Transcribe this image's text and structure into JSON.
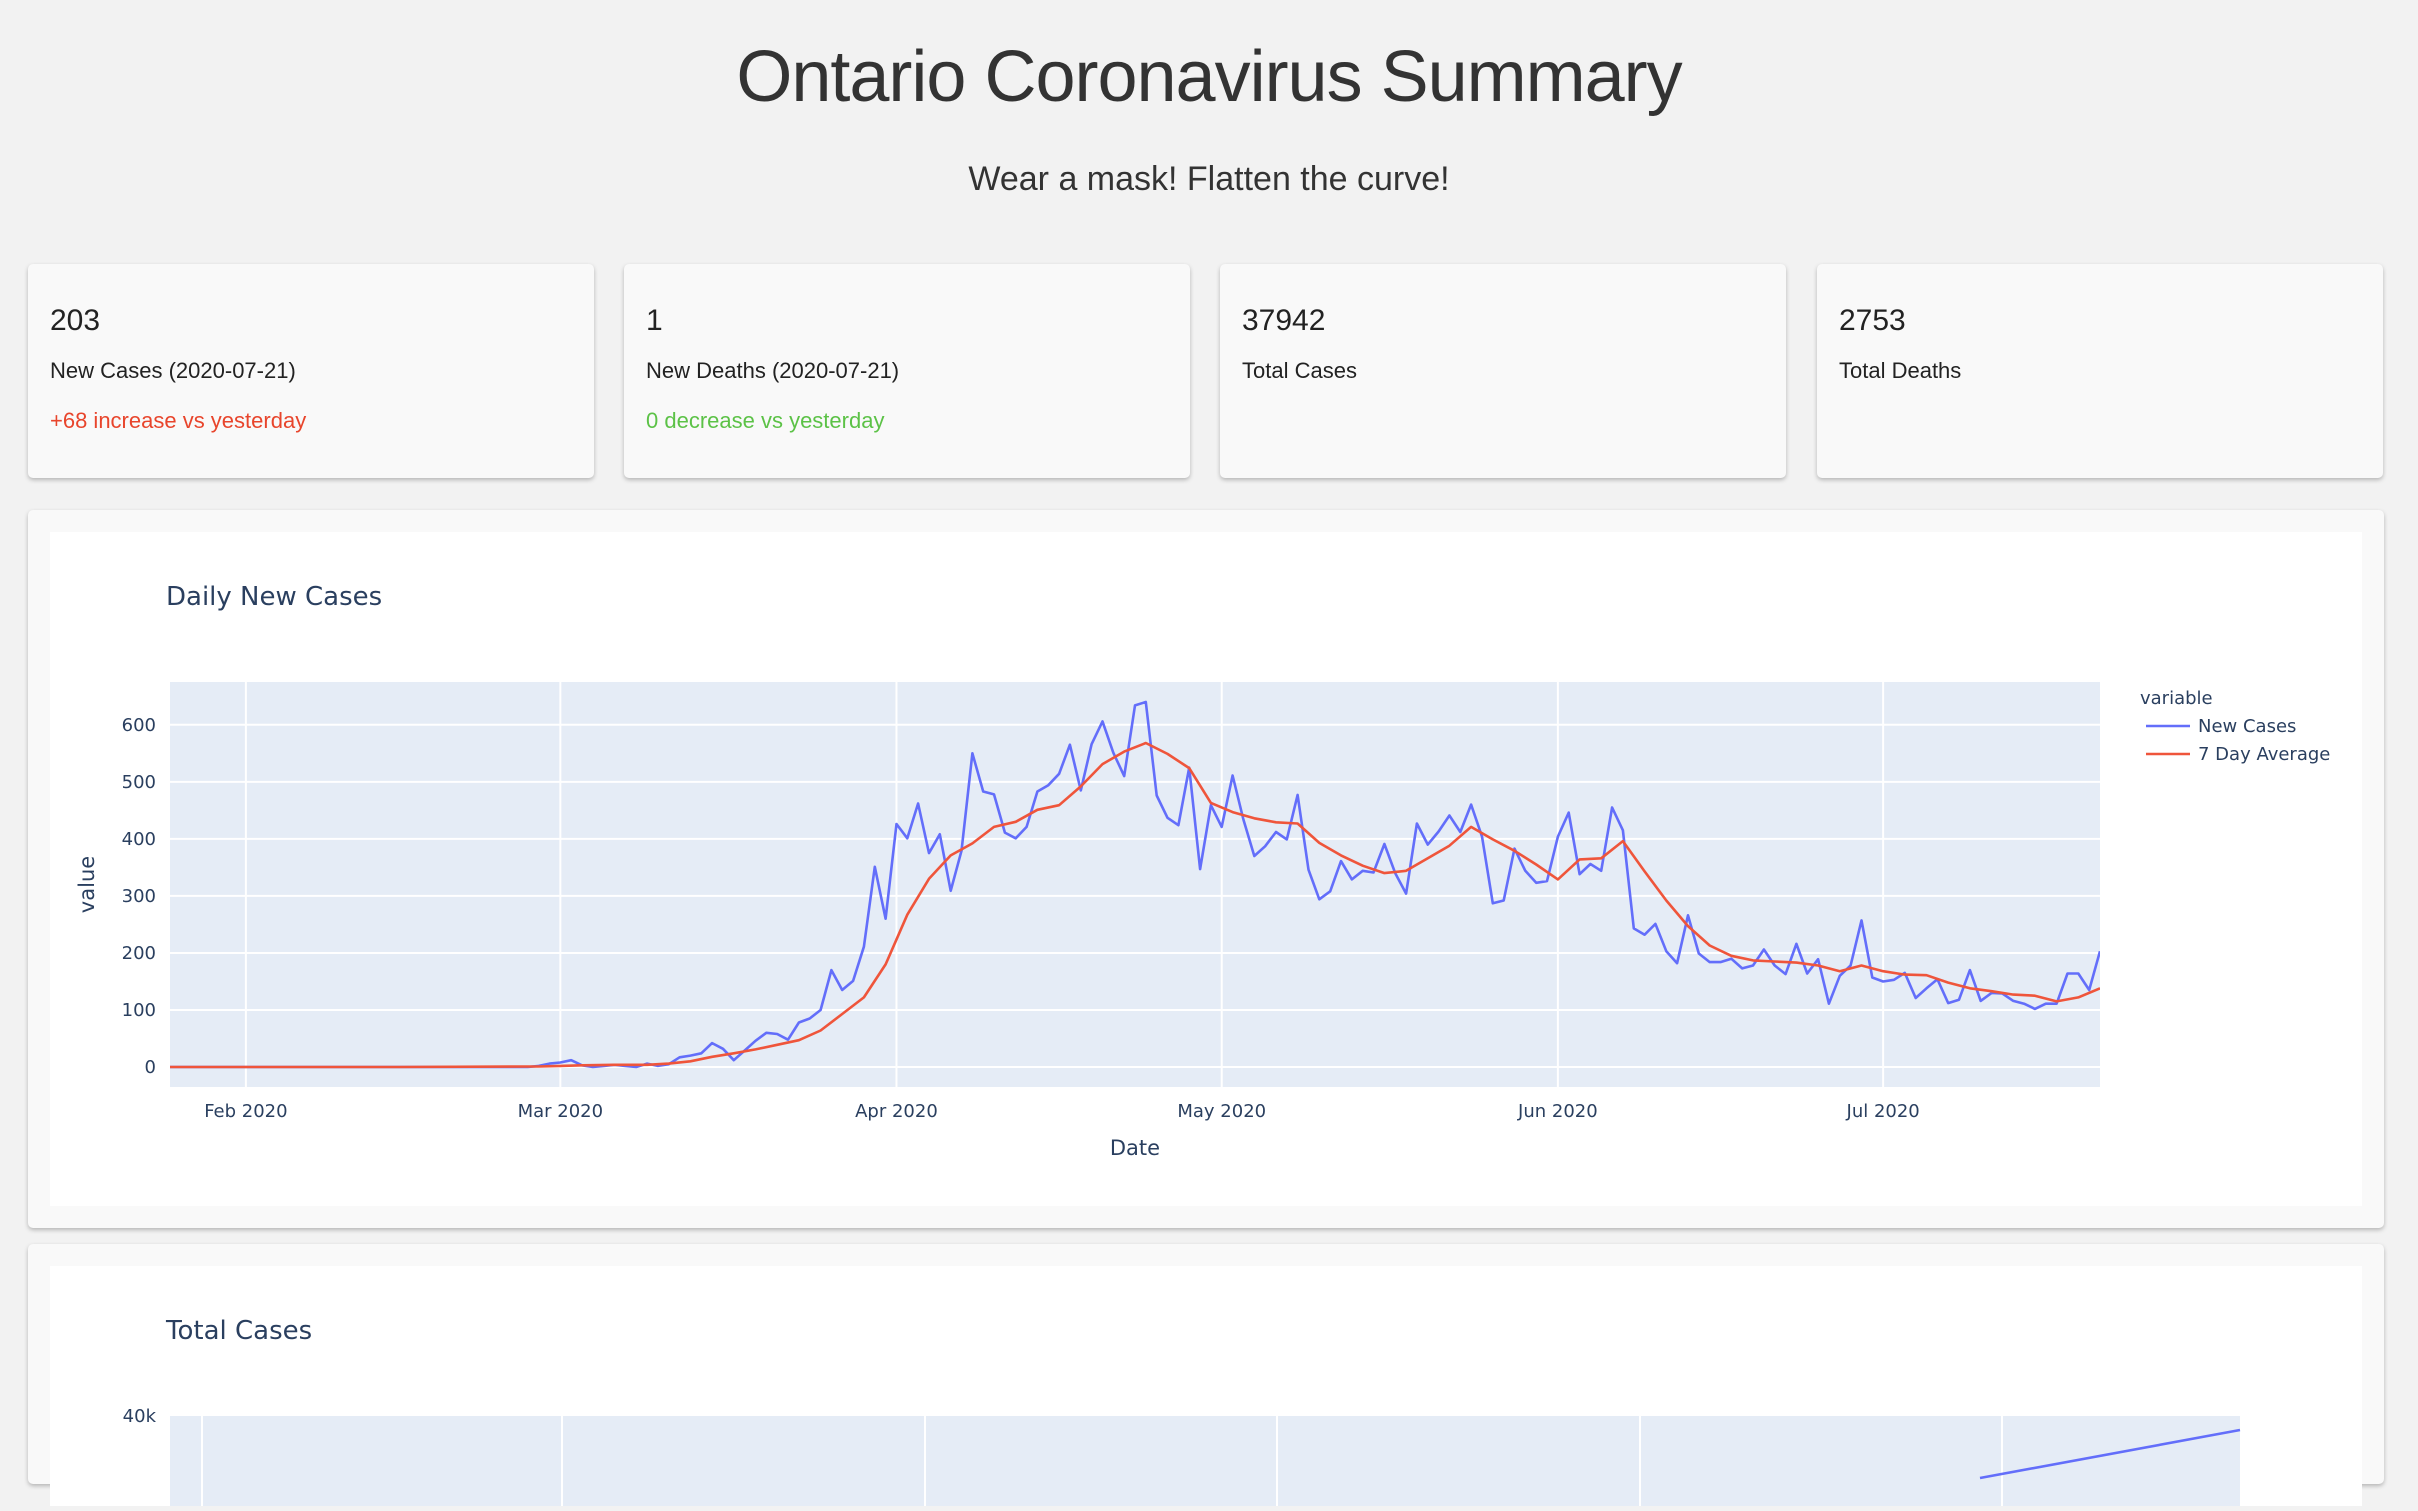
{
  "header": {
    "title": "Ontario Coronavirus Summary",
    "subtitle": "Wear a mask! Flatten the curve!"
  },
  "cards": [
    {
      "value": "203",
      "label": "New Cases (2020-07-21)",
      "change": "+68 increase vs yesterday",
      "change_color": "#e8452c"
    },
    {
      "value": "1",
      "label": "New Deaths (2020-07-21)",
      "change": "0 decrease vs yesterday",
      "change_color": "#5cc247"
    },
    {
      "value": "37942",
      "label": "Total Cases",
      "change": ""
    },
    {
      "value": "2753",
      "label": "Total Deaths",
      "change": ""
    }
  ],
  "chart_data": [
    {
      "type": "line",
      "title": "Daily New Cases",
      "xlabel": "Date",
      "ylabel": "value",
      "xlim": [
        "2020-01-25",
        "2020-07-21"
      ],
      "ylim": [
        -35,
        675
      ],
      "yticks": [
        0,
        100,
        200,
        300,
        400,
        500,
        600
      ],
      "xticks": [
        "2020-02-01",
        "2020-03-01",
        "2020-04-01",
        "2020-05-01",
        "2020-06-01",
        "2020-07-01"
      ],
      "xticklabels": [
        "Feb 2020",
        "Mar 2020",
        "Apr 2020",
        "May 2020",
        "Jun 2020",
        "Jul 2020"
      ],
      "legend_title": "variable",
      "legend_position": "top-right",
      "grid": true,
      "series": [
        {
          "name": "New Cases",
          "color": "#636efa",
          "points": [
            [
              "2020-01-25",
              0
            ],
            [
              "2020-02-01",
              0
            ],
            [
              "2020-02-15",
              0
            ],
            [
              "2020-02-27",
              0
            ],
            [
              "2020-02-28",
              2
            ],
            [
              "2020-02-29",
              6
            ],
            [
              "2020-03-01",
              8
            ],
            [
              "2020-03-02",
              12
            ],
            [
              "2020-03-03",
              3
            ],
            [
              "2020-03-04",
              0
            ],
            [
              "2020-03-05",
              2
            ],
            [
              "2020-03-06",
              4
            ],
            [
              "2020-03-07",
              2
            ],
            [
              "2020-03-08",
              0
            ],
            [
              "2020-03-09",
              6
            ],
            [
              "2020-03-10",
              2
            ],
            [
              "2020-03-11",
              5
            ],
            [
              "2020-03-12",
              17
            ],
            [
              "2020-03-13",
              20
            ],
            [
              "2020-03-14",
              24
            ],
            [
              "2020-03-15",
              42
            ],
            [
              "2020-03-16",
              32
            ],
            [
              "2020-03-17",
              12
            ],
            [
              "2020-03-18",
              29
            ],
            [
              "2020-03-19",
              46
            ],
            [
              "2020-03-20",
              60
            ],
            [
              "2020-03-21",
              58
            ],
            [
              "2020-03-22",
              48
            ],
            [
              "2020-03-23",
              78
            ],
            [
              "2020-03-24",
              85
            ],
            [
              "2020-03-25",
              100
            ],
            [
              "2020-03-26",
              170
            ],
            [
              "2020-03-27",
              135
            ],
            [
              "2020-03-28",
              151
            ],
            [
              "2020-03-29",
              211
            ],
            [
              "2020-03-30",
              351
            ],
            [
              "2020-03-31",
              260
            ],
            [
              "2020-04-01",
              426
            ],
            [
              "2020-04-02",
              401
            ],
            [
              "2020-04-03",
              462
            ],
            [
              "2020-04-04",
              375
            ],
            [
              "2020-04-05",
              408
            ],
            [
              "2020-04-06",
              309
            ],
            [
              "2020-04-07",
              379
            ],
            [
              "2020-04-08",
              550
            ],
            [
              "2020-04-09",
              483
            ],
            [
              "2020-04-10",
              478
            ],
            [
              "2020-04-11",
              411
            ],
            [
              "2020-04-12",
              401
            ],
            [
              "2020-04-13",
              421
            ],
            [
              "2020-04-14",
              483
            ],
            [
              "2020-04-15",
              494
            ],
            [
              "2020-04-16",
              514
            ],
            [
              "2020-04-17",
              565
            ],
            [
              "2020-04-18",
              485
            ],
            [
              "2020-04-19",
              566
            ],
            [
              "2020-04-20",
              606
            ],
            [
              "2020-04-21",
              551
            ],
            [
              "2020-04-22",
              510
            ],
            [
              "2020-04-23",
              634
            ],
            [
              "2020-04-24",
              640
            ],
            [
              "2020-04-25",
              476
            ],
            [
              "2020-04-26",
              437
            ],
            [
              "2020-04-27",
              424
            ],
            [
              "2020-04-28",
              525
            ],
            [
              "2020-04-29",
              347
            ],
            [
              "2020-04-30",
              459
            ],
            [
              "2020-05-01",
              421
            ],
            [
              "2020-05-02",
              511
            ],
            [
              "2020-05-03",
              434
            ],
            [
              "2020-05-04",
              370
            ],
            [
              "2020-05-05",
              387
            ],
            [
              "2020-05-06",
              412
            ],
            [
              "2020-05-07",
              399
            ],
            [
              "2020-05-08",
              477
            ],
            [
              "2020-05-09",
              346
            ],
            [
              "2020-05-10",
              294
            ],
            [
              "2020-05-11",
              308
            ],
            [
              "2020-05-12",
              361
            ],
            [
              "2020-05-13",
              329
            ],
            [
              "2020-05-14",
              344
            ],
            [
              "2020-05-15",
              341
            ],
            [
              "2020-05-16",
              391
            ],
            [
              "2020-05-17",
              340
            ],
            [
              "2020-05-18",
              304
            ],
            [
              "2020-05-19",
              427
            ],
            [
              "2020-05-20",
              390
            ],
            [
              "2020-05-21",
              413
            ],
            [
              "2020-05-22",
              441
            ],
            [
              "2020-05-23",
              412
            ],
            [
              "2020-05-24",
              460
            ],
            [
              "2020-05-25",
              404
            ],
            [
              "2020-05-26",
              287
            ],
            [
              "2020-05-27",
              292
            ],
            [
              "2020-05-28",
              383
            ],
            [
              "2020-05-29",
              344
            ],
            [
              "2020-05-30",
              323
            ],
            [
              "2020-05-31",
              326
            ],
            [
              "2020-06-01",
              404
            ],
            [
              "2020-06-02",
              446
            ],
            [
              "2020-06-03",
              338
            ],
            [
              "2020-06-04",
              356
            ],
            [
              "2020-06-05",
              344
            ],
            [
              "2020-06-06",
              455
            ],
            [
              "2020-06-07",
              415
            ],
            [
              "2020-06-08",
              243
            ],
            [
              "2020-06-09",
              232
            ],
            [
              "2020-06-10",
              251
            ],
            [
              "2020-06-11",
              203
            ],
            [
              "2020-06-12",
              182
            ],
            [
              "2020-06-13",
              266
            ],
            [
              "2020-06-14",
              199
            ],
            [
              "2020-06-15",
              184
            ],
            [
              "2020-06-16",
              184
            ],
            [
              "2020-06-17",
              190
            ],
            [
              "2020-06-18",
              173
            ],
            [
              "2020-06-19",
              178
            ],
            [
              "2020-06-20",
              206
            ],
            [
              "2020-06-21",
              178
            ],
            [
              "2020-06-22",
              163
            ],
            [
              "2020-06-23",
              216
            ],
            [
              "2020-06-24",
              164
            ],
            [
              "2020-06-25",
              189
            ],
            [
              "2020-06-26",
              111
            ],
            [
              "2020-06-27",
              160
            ],
            [
              "2020-06-28",
              178
            ],
            [
              "2020-06-29",
              257
            ],
            [
              "2020-06-30",
              157
            ],
            [
              "2020-07-01",
              150
            ],
            [
              "2020-07-02",
              153
            ],
            [
              "2020-07-03",
              165
            ],
            [
              "2020-07-04",
              121
            ],
            [
              "2020-07-05",
              138
            ],
            [
              "2020-07-06",
              154
            ],
            [
              "2020-07-07",
              112
            ],
            [
              "2020-07-08",
              118
            ],
            [
              "2020-07-09",
              170
            ],
            [
              "2020-07-10",
              116
            ],
            [
              "2020-07-11",
              130
            ],
            [
              "2020-07-12",
              129
            ],
            [
              "2020-07-13",
              116
            ],
            [
              "2020-07-14",
              111
            ],
            [
              "2020-07-15",
              102
            ],
            [
              "2020-07-16",
              111
            ],
            [
              "2020-07-17",
              111
            ],
            [
              "2020-07-18",
              164
            ],
            [
              "2020-07-19",
              164
            ],
            [
              "2020-07-20",
              135
            ],
            [
              "2020-07-21",
              203
            ]
          ]
        },
        {
          "name": "7 Day Average",
          "color": "#ef553b",
          "points": [
            [
              "2020-01-25",
              0
            ],
            [
              "2020-02-15",
              0
            ],
            [
              "2020-02-28",
              1
            ],
            [
              "2020-03-01",
              2
            ],
            [
              "2020-03-03",
              3
            ],
            [
              "2020-03-06",
              4
            ],
            [
              "2020-03-09",
              4
            ],
            [
              "2020-03-11",
              6
            ],
            [
              "2020-03-13",
              10
            ],
            [
              "2020-03-15",
              18
            ],
            [
              "2020-03-17",
              24
            ],
            [
              "2020-03-19",
              31
            ],
            [
              "2020-03-21",
              39
            ],
            [
              "2020-03-23",
              47
            ],
            [
              "2020-03-25",
              64
            ],
            [
              "2020-03-27",
              93
            ],
            [
              "2020-03-29",
              122
            ],
            [
              "2020-03-31",
              180
            ],
            [
              "2020-04-02",
              267
            ],
            [
              "2020-04-04",
              330
            ],
            [
              "2020-04-06",
              371
            ],
            [
              "2020-04-08",
              392
            ],
            [
              "2020-04-10",
              421
            ],
            [
              "2020-04-12",
              430
            ],
            [
              "2020-04-14",
              451
            ],
            [
              "2020-04-16",
              459
            ],
            [
              "2020-04-18",
              492
            ],
            [
              "2020-04-20",
              531
            ],
            [
              "2020-04-22",
              553
            ],
            [
              "2020-04-24",
              568
            ],
            [
              "2020-04-26",
              549
            ],
            [
              "2020-04-28",
              524
            ],
            [
              "2020-04-30",
              463
            ],
            [
              "2020-05-02",
              447
            ],
            [
              "2020-05-04",
              436
            ],
            [
              "2020-05-06",
              429
            ],
            [
              "2020-05-08",
              427
            ],
            [
              "2020-05-10",
              393
            ],
            [
              "2020-05-12",
              371
            ],
            [
              "2020-05-14",
              353
            ],
            [
              "2020-05-16",
              340
            ],
            [
              "2020-05-18",
              344
            ],
            [
              "2020-05-20",
              366
            ],
            [
              "2020-05-22",
              388
            ],
            [
              "2020-05-24",
              421
            ],
            [
              "2020-05-26",
              399
            ],
            [
              "2020-05-28",
              379
            ],
            [
              "2020-05-30",
              355
            ],
            [
              "2020-06-01",
              329
            ],
            [
              "2020-06-03",
              364
            ],
            [
              "2020-06-05",
              366
            ],
            [
              "2020-06-07",
              396
            ],
            [
              "2020-06-09",
              343
            ],
            [
              "2020-06-11",
              292
            ],
            [
              "2020-06-13",
              247
            ],
            [
              "2020-06-15",
              213
            ],
            [
              "2020-06-17",
              195
            ],
            [
              "2020-06-19",
              187
            ],
            [
              "2020-06-21",
              185
            ],
            [
              "2020-06-23",
              183
            ],
            [
              "2020-06-25",
              178
            ],
            [
              "2020-06-27",
              168
            ],
            [
              "2020-06-29",
              178
            ],
            [
              "2020-07-01",
              168
            ],
            [
              "2020-07-03",
              162
            ],
            [
              "2020-07-05",
              161
            ],
            [
              "2020-07-07",
              148
            ],
            [
              "2020-07-09",
              138
            ],
            [
              "2020-07-11",
              133
            ],
            [
              "2020-07-13",
              127
            ],
            [
              "2020-07-15",
              125
            ],
            [
              "2020-07-17",
              115
            ],
            [
              "2020-07-19",
              122
            ],
            [
              "2020-07-21",
              138
            ]
          ]
        }
      ]
    },
    {
      "type": "line",
      "title": "Total Cases",
      "yticks_visible": [
        "40k"
      ],
      "series": [
        {
          "name": "Total Cases",
          "color": "#636efa"
        }
      ]
    }
  ]
}
